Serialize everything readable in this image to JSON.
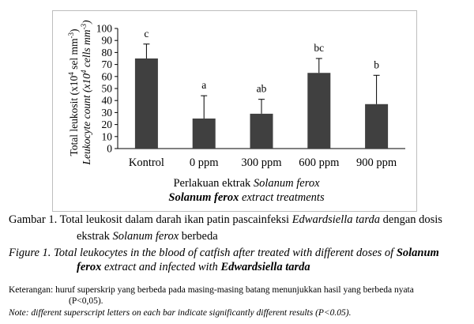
{
  "chart_data": {
    "type": "bar",
    "categories": [
      "Kontrol",
      "0 ppm",
      "300 ppm",
      "600 ppm",
      "900 ppm"
    ],
    "values": [
      75,
      25,
      29,
      63,
      37
    ],
    "error_upper": [
      87,
      44,
      41,
      75,
      61
    ],
    "significance_letters": [
      "c",
      "a",
      "ab",
      "bc",
      "b"
    ],
    "ylim": [
      0,
      100
    ],
    "yticks": [
      0,
      10,
      20,
      30,
      40,
      50,
      60,
      70,
      80,
      90,
      100
    ],
    "ylabel_id_prefix": "Total leukosit (x10",
    "ylabel_id_sup": "4",
    "ylabel_id_mid": " sel mm",
    "ylabel_id_sup2": "-3",
    "ylabel_id_suffix": ")",
    "ylabel_en_prefix": "Leukocyte count (x10",
    "ylabel_en_sup": "4",
    "ylabel_en_mid": " cells mm",
    "ylabel_en_sup2": "-3",
    "ylabel_en_suffix": ")",
    "xlabel_id_text": "Perlakuan ektrak ",
    "xlabel_id_italic": "Solanum ferox",
    "xlabel_en_bold_italic": "Solanum ferox",
    "xlabel_en_italic": " extract treatments",
    "bar_color": "#404040",
    "grid": false
  },
  "caption": {
    "id_part1": "Gambar 1. Total leukosit dalam darah ikan patin pascainfeksi ",
    "id_italic1": "Edwardsiella tarda",
    "id_part2": " dengan dosis",
    "id_line2_part1": "ekstrak ",
    "id_line2_italic": "Solanum ferox",
    "id_line2_part2": " berbeda",
    "en_line1_text": "Figure 1. Total leukocytes in the blood of catfish after treated with different doses of ",
    "en_line1_bold": "Solanum",
    "en_line2_bold": "ferox",
    "en_line2_text": " extract and infected with ",
    "en_line2_bold2": "Edwardsiella tarda"
  },
  "notes": {
    "id_line1": "Keterangan: huruf superskrip yang berbeda pada masing-masing batang menunjukkan hasil yang berbeda nyata",
    "id_line2": "(P<0,05).",
    "en_line": "Note: different superscript letters on each bar indicate significantly different results (P<0.05)."
  }
}
